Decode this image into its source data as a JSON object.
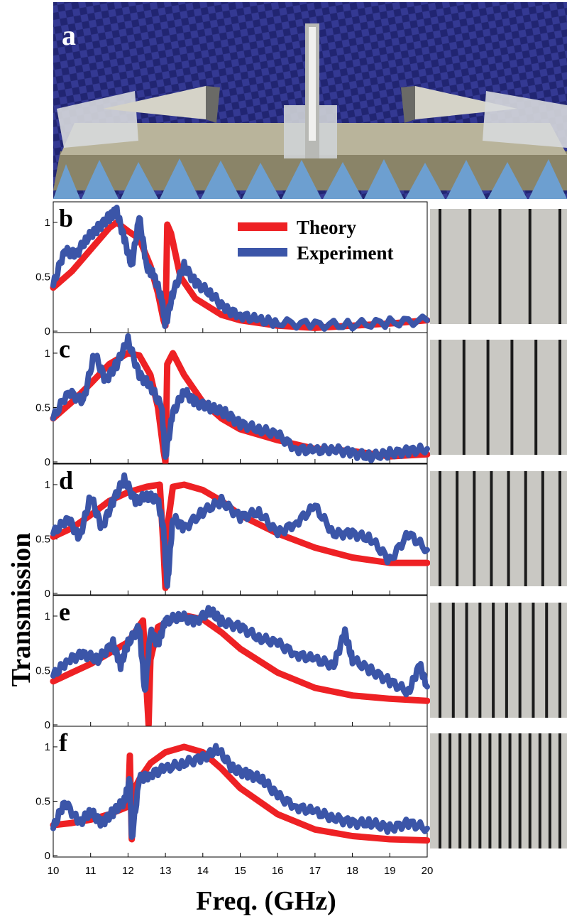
{
  "photo": {
    "label": "a",
    "colors": {
      "foam": "#3a3fb0",
      "foam_dark": "#141a5c",
      "floor_cone": "#6d9fd0",
      "metal": "#c8c8c4"
    }
  },
  "figure": {
    "ylabel": "Transmission",
    "xlabel": "Freq. (GHz)",
    "legend": [
      "Theory",
      "Experiment"
    ],
    "x_ticks": [
      "10",
      "11",
      "12",
      "13",
      "14",
      "15",
      "16",
      "17",
      "18",
      "19",
      "20"
    ],
    "y_ticks": [
      "0",
      "0.5",
      "1"
    ],
    "colors": {
      "theory": "#ee2124",
      "experiment": "#3b55a8"
    }
  },
  "chart_data": [
    {
      "type": "line",
      "label": "b",
      "xlim": [
        10,
        20
      ],
      "ylim": [
        0,
        1.15
      ],
      "grid": false,
      "series": [
        {
          "name": "Theory",
          "x": [
            10,
            10.5,
            11,
            11.5,
            11.7,
            12,
            12.3,
            12.6,
            12.8,
            12.95,
            13,
            13.05,
            13.15,
            13.4,
            13.8,
            14.5,
            15,
            16,
            17,
            18,
            19,
            20
          ],
          "y": [
            0.4,
            0.55,
            0.75,
            0.95,
            1,
            0.92,
            0.85,
            0.6,
            0.35,
            0.1,
            0.05,
            0.98,
            0.9,
            0.5,
            0.3,
            0.15,
            0.1,
            0.05,
            0.03,
            0.05,
            0.07,
            0.1
          ]
        },
        {
          "name": "Experiment",
          "x": [
            10,
            10.3,
            10.6,
            10.9,
            11.2,
            11.5,
            11.7,
            11.9,
            12.1,
            12.3,
            12.5,
            12.7,
            12.9,
            13,
            13.2,
            13.5,
            13.8,
            14.2,
            14.6,
            15,
            15.5,
            16,
            17,
            18,
            19,
            20
          ],
          "y": [
            0.42,
            0.75,
            0.7,
            0.85,
            0.95,
            1.05,
            1.1,
            0.85,
            0.6,
            1.05,
            0.6,
            0.5,
            0.3,
            0.05,
            0.35,
            0.6,
            0.45,
            0.35,
            0.2,
            0.15,
            0.1,
            0.08,
            0.06,
            0.06,
            0.08,
            0.1
          ]
        }
      ]
    },
    {
      "type": "line",
      "label": "c",
      "xlim": [
        10,
        20
      ],
      "ylim": [
        0,
        1.15
      ],
      "grid": false,
      "series": [
        {
          "name": "Theory",
          "x": [
            10,
            10.5,
            11,
            11.5,
            12,
            12.3,
            12.6,
            12.8,
            12.95,
            13,
            13.05,
            13.2,
            13.5,
            14,
            14.5,
            15,
            16,
            17,
            18,
            19,
            20
          ],
          "y": [
            0.4,
            0.55,
            0.72,
            0.9,
            1,
            0.98,
            0.8,
            0.5,
            0.1,
            0,
            0.9,
            1,
            0.8,
            0.55,
            0.4,
            0.3,
            0.2,
            0.12,
            0.1,
            0.05,
            0.07
          ]
        },
        {
          "name": "Experiment",
          "x": [
            10,
            10.4,
            10.8,
            11.1,
            11.4,
            11.7,
            12,
            12.3,
            12.6,
            12.9,
            13,
            13.2,
            13.5,
            13.8,
            14.2,
            14.6,
            15,
            15.5,
            16,
            16.5,
            17,
            17.5,
            18,
            18.5,
            19,
            19.5,
            20
          ],
          "y": [
            0.4,
            0.65,
            0.55,
            1.0,
            0.75,
            0.9,
            1.12,
            0.8,
            0.7,
            0.5,
            0.05,
            0.45,
            0.65,
            0.55,
            0.5,
            0.45,
            0.35,
            0.3,
            0.25,
            0.12,
            0.1,
            0.12,
            0.08,
            0.05,
            0.08,
            0.1,
            0.12
          ]
        }
      ]
    },
    {
      "type": "line",
      "label": "d",
      "xlim": [
        10,
        20
      ],
      "ylim": [
        0,
        1.15
      ],
      "grid": false,
      "series": [
        {
          "name": "Theory",
          "x": [
            10,
            10.5,
            11,
            11.5,
            12,
            12.5,
            12.85,
            12.95,
            13,
            13.05,
            13.2,
            13.5,
            14,
            14.5,
            15,
            16,
            17,
            18,
            19,
            20
          ],
          "y": [
            0.52,
            0.6,
            0.72,
            0.85,
            0.93,
            0.98,
            1,
            0.4,
            0.05,
            0.6,
            0.98,
            1,
            0.95,
            0.85,
            0.72,
            0.55,
            0.42,
            0.33,
            0.28,
            0.28
          ]
        },
        {
          "name": "Experiment",
          "x": [
            10,
            10.4,
            10.7,
            11,
            11.3,
            11.6,
            11.9,
            12.2,
            12.5,
            12.8,
            12.95,
            13.05,
            13.2,
            13.5,
            14,
            14.5,
            15,
            15.5,
            16,
            16.5,
            17,
            17.5,
            18,
            18.5,
            19,
            19.5,
            20
          ],
          "y": [
            0.55,
            0.7,
            0.5,
            0.9,
            0.6,
            0.85,
            1.05,
            0.85,
            0.9,
            0.85,
            0.6,
            0.05,
            0.7,
            0.6,
            0.75,
            0.85,
            0.7,
            0.75,
            0.55,
            0.65,
            0.8,
            0.55,
            0.55,
            0.5,
            0.3,
            0.55,
            0.4
          ]
        }
      ]
    },
    {
      "type": "line",
      "label": "e",
      "xlim": [
        10,
        20
      ],
      "ylim": [
        0,
        1.15
      ],
      "grid": false,
      "series": [
        {
          "name": "Theory",
          "x": [
            10,
            10.5,
            11,
            11.5,
            12,
            12.4,
            12.5,
            12.55,
            12.6,
            12.8,
            13.2,
            13.6,
            14,
            14.5,
            15,
            16,
            17,
            18,
            19,
            20
          ],
          "y": [
            0.4,
            0.48,
            0.56,
            0.66,
            0.76,
            0.96,
            0.3,
            0,
            0.6,
            0.9,
            0.97,
            1,
            0.97,
            0.85,
            0.7,
            0.48,
            0.34,
            0.27,
            0.24,
            0.22
          ]
        },
        {
          "name": "Experiment",
          "x": [
            10,
            10.4,
            10.8,
            11.2,
            11.6,
            11.8,
            12,
            12.3,
            12.45,
            12.6,
            12.8,
            13,
            13.4,
            13.8,
            14.2,
            14.5,
            15,
            15.5,
            16,
            16.5,
            17,
            17.5,
            17.8,
            18,
            18.5,
            19,
            19.5,
            19.8,
            20
          ],
          "y": [
            0.45,
            0.6,
            0.65,
            0.6,
            0.75,
            0.55,
            0.75,
            0.9,
            0.3,
            0.85,
            0.75,
            0.95,
            1,
            0.95,
            1.05,
            0.95,
            0.9,
            0.8,
            0.75,
            0.65,
            0.6,
            0.55,
            0.85,
            0.6,
            0.5,
            0.4,
            0.3,
            0.55,
            0.35
          ]
        }
      ]
    },
    {
      "type": "line",
      "label": "f",
      "xlim": [
        10,
        20
      ],
      "ylim": [
        0,
        1.15
      ],
      "grid": false,
      "series": [
        {
          "name": "Theory",
          "x": [
            10,
            10.5,
            11,
            11.5,
            12,
            12.05,
            12.1,
            12.15,
            12.3,
            12.6,
            13,
            13.5,
            14,
            14.5,
            15,
            16,
            17,
            18,
            19,
            20
          ],
          "y": [
            0.28,
            0.3,
            0.33,
            0.38,
            0.45,
            0.92,
            0.15,
            0.6,
            0.7,
            0.85,
            0.95,
            1,
            0.95,
            0.8,
            0.62,
            0.38,
            0.24,
            0.18,
            0.15,
            0.14
          ]
        },
        {
          "name": "Experiment",
          "x": [
            10,
            10.3,
            10.7,
            11,
            11.3,
            11.6,
            11.9,
            12.05,
            12.1,
            12.3,
            12.6,
            13,
            13.5,
            14,
            14.4,
            14.8,
            15.2,
            15.6,
            16,
            16.5,
            17,
            17.5,
            18,
            18.5,
            19,
            19.5,
            20
          ],
          "y": [
            0.25,
            0.5,
            0.3,
            0.4,
            0.3,
            0.4,
            0.5,
            0.7,
            0.15,
            0.7,
            0.75,
            0.8,
            0.85,
            0.9,
            0.98,
            0.8,
            0.75,
            0.7,
            0.55,
            0.45,
            0.4,
            0.35,
            0.3,
            0.3,
            0.25,
            0.3,
            0.25
          ]
        }
      ]
    }
  ],
  "strips": [
    {
      "label": "b",
      "stripes": 5
    },
    {
      "label": "c",
      "stripes": 6
    },
    {
      "label": "d",
      "stripes": 8
    },
    {
      "label": "e",
      "stripes": 10
    },
    {
      "label": "f",
      "stripes": 13
    }
  ]
}
